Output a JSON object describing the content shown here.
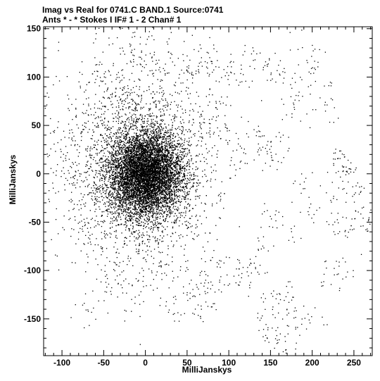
{
  "header": {
    "line1": "Imag vs Real for 0741.C BAND.1   Source:0741",
    "line2": "Ants * - *    Stokes I  IF# 1 - 2  Chan# 1"
  },
  "chart_data": {
    "type": "scatter",
    "xlabel": "MilliJanskys",
    "ylabel": "MilliJanskys",
    "xlim": [
      -122,
      272
    ],
    "ylim": [
      -188,
      152
    ],
    "xticks": [
      -100,
      -50,
      0,
      50,
      100,
      150,
      200,
      250
    ],
    "yticks": [
      -150,
      -100,
      -50,
      0,
      50,
      100,
      150
    ],
    "grid": false,
    "legend": "none",
    "point_color": "#000000",
    "series": [
      {
        "values_description": "Visibility points; a dense cluster centred near (0, 0) with radius about 35 mJy, plus sparse scattered points spanning x from about -100 to 265 and y from about -180 to 145",
        "core": {
          "center": [
            0,
            0
          ],
          "spread": [
            22,
            22
          ],
          "count": 9000
        },
        "halo": {
          "center": [
            -10,
            10
          ],
          "spread": [
            45,
            55
          ],
          "count": 2200
        },
        "sample_points": [
          [
            -95,
            10
          ],
          [
            -90,
            40
          ],
          [
            -80,
            -15
          ],
          [
            -70,
            -140
          ],
          [
            -75,
            -60
          ],
          [
            -60,
            60
          ],
          [
            -40,
            -110
          ],
          [
            -20,
            120
          ],
          [
            0,
            120
          ],
          [
            20,
            115
          ],
          [
            -45,
            100
          ],
          [
            -30,
            80
          ],
          [
            55,
            100
          ],
          [
            60,
            120
          ],
          [
            75,
            115
          ],
          [
            90,
            105
          ],
          [
            100,
            100
          ],
          [
            120,
            120
          ],
          [
            130,
            100
          ],
          [
            150,
            110
          ],
          [
            160,
            105
          ],
          [
            180,
            85
          ],
          [
            200,
            110
          ],
          [
            195,
            130
          ],
          [
            210,
            95
          ],
          [
            215,
            60
          ],
          [
            70,
            60
          ],
          [
            80,
            50
          ],
          [
            95,
            40
          ],
          [
            100,
            70
          ],
          [
            110,
            20
          ],
          [
            130,
            45
          ],
          [
            140,
            30
          ],
          [
            150,
            15
          ],
          [
            160,
            35
          ],
          [
            180,
            60
          ],
          [
            190,
            -10
          ],
          [
            200,
            -40
          ],
          [
            170,
            -60
          ],
          [
            150,
            -40
          ],
          [
            140,
            -80
          ],
          [
            130,
            -100
          ],
          [
            120,
            -95
          ],
          [
            100,
            -110
          ],
          [
            90,
            -90
          ],
          [
            70,
            -100
          ],
          [
            60,
            -115
          ],
          [
            45,
            -130
          ],
          [
            30,
            -140
          ],
          [
            20,
            -95
          ],
          [
            -10,
            -120
          ],
          [
            -40,
            -115
          ],
          [
            65,
            -140
          ],
          [
            75,
            -120
          ],
          [
            145,
            -140
          ],
          [
            150,
            -160
          ],
          [
            155,
            -170
          ],
          [
            160,
            -130
          ],
          [
            170,
            -125
          ],
          [
            165,
            -175
          ],
          [
            180,
            -150
          ],
          [
            195,
            -150
          ],
          [
            220,
            -105
          ],
          [
            230,
            -100
          ],
          [
            245,
            -10
          ],
          [
            250,
            -15
          ],
          [
            240,
            0
          ],
          [
            260,
            -45
          ],
          [
            265,
            -50
          ],
          [
            235,
            -50
          ],
          [
            238,
            -60
          ],
          [
            225,
            -30
          ],
          [
            228,
            15
          ],
          [
            236,
            10
          ]
        ]
      }
    ]
  }
}
